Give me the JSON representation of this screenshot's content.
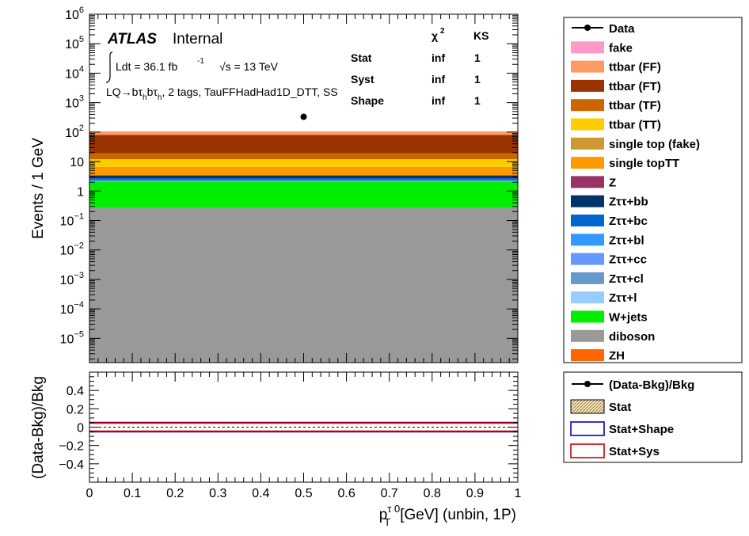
{
  "chart_data": [
    {
      "type": "area",
      "panel": "main",
      "log_y": true,
      "ylabel": "Events / 1 GeV",
      "ylim": [
        1.5e-06,
        1000000
      ],
      "xlim": [
        0,
        1
      ],
      "y_ticks": [
        {
          "exp": -5,
          "label": "10",
          "sup": "−5"
        },
        {
          "exp": -4,
          "label": "10",
          "sup": "−4"
        },
        {
          "exp": -3,
          "label": "10",
          "sup": "−3"
        },
        {
          "exp": -2,
          "label": "10",
          "sup": "−2"
        },
        {
          "exp": -1,
          "label": "10",
          "sup": "−1"
        },
        {
          "exp": 0,
          "label": "1",
          "sup": ""
        },
        {
          "exp": 1,
          "label": "10",
          "sup": ""
        },
        {
          "exp": 2,
          "label": "10",
          "sup": "2"
        },
        {
          "exp": 3,
          "label": "10",
          "sup": "3"
        },
        {
          "exp": 4,
          "label": "10",
          "sup": "4"
        },
        {
          "exp": 5,
          "label": "10",
          "sup": "5"
        },
        {
          "exp": 6,
          "label": "10",
          "sup": "6"
        }
      ],
      "stack": [
        {
          "name": "diboson",
          "color": "#999999",
          "low": 1.5e-06,
          "high": 0.27
        },
        {
          "name": "W+jets",
          "color": "#00ee00",
          "low": 0.27,
          "high": 2.1
        },
        {
          "name": "Zττ+l",
          "color": "#99ccff",
          "low": 2.1,
          "high": 2.15
        },
        {
          "name": "Zττ+cl",
          "color": "#6699cc",
          "low": 2.15,
          "high": 2.2
        },
        {
          "name": "Zττ+cc",
          "color": "#6699ff",
          "low": 2.2,
          "high": 2.25
        },
        {
          "name": "Zττ+bl",
          "color": "#3399ff",
          "low": 2.25,
          "high": 2.35
        },
        {
          "name": "Zττ+bc",
          "color": "#0066cc",
          "low": 2.35,
          "high": 2.7
        },
        {
          "name": "Zττ+bb",
          "color": "#003366",
          "low": 2.7,
          "high": 3.3
        },
        {
          "name": "Z",
          "color": "#993366",
          "low": 3.3,
          "high": 3.4
        },
        {
          "name": "single topTT",
          "color": "#ff9900",
          "low": 3.4,
          "high": 6.5
        },
        {
          "name": "single top (fake)",
          "color": "#cc9933",
          "low": 6.5,
          "high": 6.6
        },
        {
          "name": "ttbar (TT)",
          "color": "#ffcc00",
          "low": 6.6,
          "high": 12
        },
        {
          "name": "ttbar (TF)",
          "color": "#cc6600",
          "low": 12,
          "high": 19
        },
        {
          "name": "ttbar (FT)",
          "color": "#993300",
          "low": 19,
          "high": 80
        },
        {
          "name": "ttbar (FF)",
          "color": "#ff9966",
          "low": 80,
          "high": 105
        },
        {
          "name": "fake",
          "color": "#ff99cc",
          "low": 105,
          "high": 106
        }
      ],
      "data_points": [
        {
          "x": 0.5,
          "y": 330
        }
      ]
    },
    {
      "type": "line",
      "panel": "ratio",
      "ylabel": "(Data-Bkg)/Bkg",
      "xlabel_parts": {
        "p": "p",
        "sub": "T",
        "sup": "τ 0",
        "rest": "[GeV] (unbin, 1P)"
      },
      "ylim": [
        -0.6,
        0.6
      ],
      "xlim": [
        0,
        1
      ],
      "y_ticks": [
        {
          "v": 0.4,
          "label": "0.4"
        },
        {
          "v": 0.2,
          "label": "0.2"
        },
        {
          "v": 0,
          "label": "0"
        },
        {
          "v": -0.2,
          "label": "−0.2"
        },
        {
          "v": -0.4,
          "label": "−0.4"
        }
      ],
      "x_ticks": [
        {
          "v": 0,
          "label": "0"
        },
        {
          "v": 0.1,
          "label": "0.1"
        },
        {
          "v": 0.2,
          "label": "0.2"
        },
        {
          "v": 0.3,
          "label": "0.3"
        },
        {
          "v": 0.4,
          "label": "0.4"
        },
        {
          "v": 0.5,
          "label": "0.5"
        },
        {
          "v": 0.6,
          "label": "0.6"
        },
        {
          "v": 0.7,
          "label": "0.7"
        },
        {
          "v": 0.8,
          "label": "0.8"
        },
        {
          "v": 0.9,
          "label": "0.9"
        },
        {
          "v": 1,
          "label": "1"
        }
      ],
      "bands": [
        {
          "name": "Stat+Shape",
          "color": "#0000cc",
          "upper": 0.05,
          "lower": -0.05
        },
        {
          "name": "Stat+Sys",
          "color": "#cc0000",
          "upper": 0.045,
          "lower": -0.045
        }
      ],
      "zero_line": 0
    }
  ],
  "annotations": {
    "atlas": "ATLAS",
    "internal": "Internal",
    "lumi_prefix": "Ldt = 36.1 fb",
    "lumi_sup": "-1",
    "energy": "√s = 13 TeV",
    "channel": "LQ→bτ",
    "channel_tail": ", 2 tags, TauFFHadHad1D_DTT, SS",
    "stats_table": {
      "headers": [
        "χ",
        "KS"
      ],
      "rows": [
        {
          "label": "Stat",
          "chi2": "inf",
          "ks": "1"
        },
        {
          "label": "Syst",
          "chi2": "inf",
          "ks": "1"
        },
        {
          "label": "Shape",
          "chi2": "inf",
          "ks": "1"
        }
      ]
    }
  },
  "legend_main": [
    {
      "label": "Data",
      "kind": "marker",
      "color": "#000000"
    },
    {
      "label": "fake",
      "kind": "fill",
      "color": "#ff99cc"
    },
    {
      "label": "ttbar (FF)",
      "kind": "fill",
      "color": "#ff9966"
    },
    {
      "label": "ttbar (FT)",
      "kind": "fill",
      "color": "#993300"
    },
    {
      "label": "ttbar (TF)",
      "kind": "fill",
      "color": "#cc6600"
    },
    {
      "label": "ttbar (TT)",
      "kind": "fill",
      "color": "#ffcc00"
    },
    {
      "label": "single top (fake)",
      "kind": "fill",
      "color": "#cc9933"
    },
    {
      "label": "single topTT",
      "kind": "fill",
      "color": "#ff9900"
    },
    {
      "label": "Z",
      "kind": "fill",
      "color": "#993366"
    },
    {
      "label": "Zττ+bb",
      "kind": "fill",
      "color": "#003366"
    },
    {
      "label": "Zττ+bc",
      "kind": "fill",
      "color": "#0066cc"
    },
    {
      "label": "Zττ+bl",
      "kind": "fill",
      "color": "#3399ff"
    },
    {
      "label": "Zττ+cc",
      "kind": "fill",
      "color": "#6699ff"
    },
    {
      "label": "Zττ+cl",
      "kind": "fill",
      "color": "#6699cc"
    },
    {
      "label": "Zττ+l",
      "kind": "fill",
      "color": "#99ccff"
    },
    {
      "label": "W+jets",
      "kind": "fill",
      "color": "#00ee00"
    },
    {
      "label": "diboson",
      "kind": "fill",
      "color": "#999999"
    },
    {
      "label": "ZH",
      "kind": "fill",
      "color": "#ff6600"
    }
  ],
  "legend_ratio": [
    {
      "label": "(Data-Bkg)/Bkg",
      "kind": "marker",
      "color": "#000000"
    },
    {
      "label": "Stat",
      "kind": "hatch",
      "color": "#8b6914"
    },
    {
      "label": "Stat+Shape",
      "kind": "outline",
      "color": "#0000cc"
    },
    {
      "label": "Stat+Sys",
      "kind": "outline",
      "color": "#cc0000"
    }
  ]
}
